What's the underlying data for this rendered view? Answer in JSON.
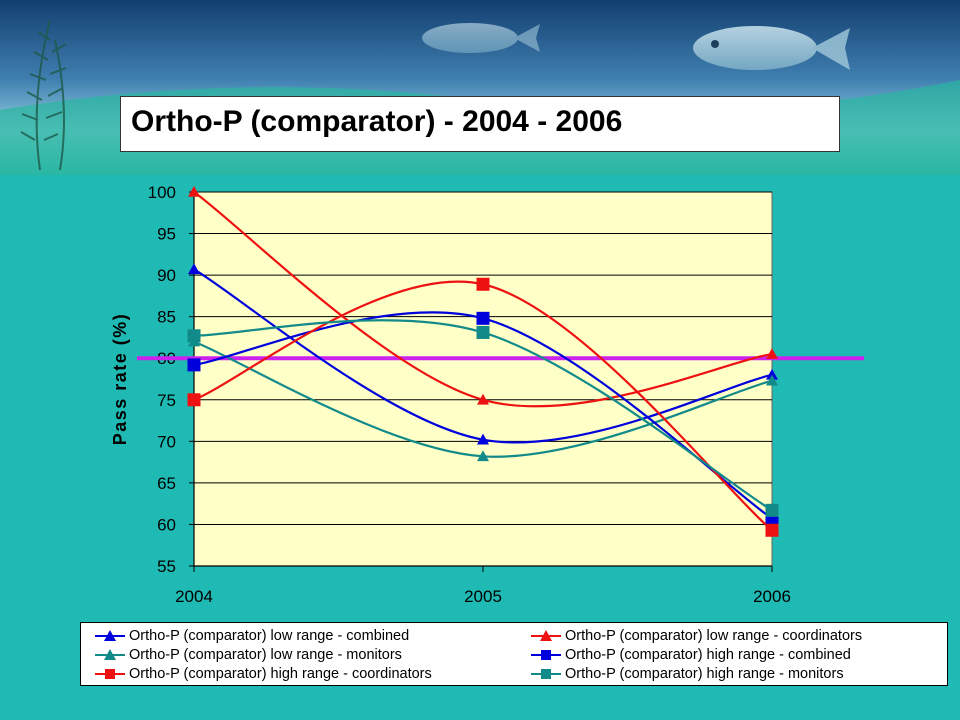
{
  "slide": {
    "title": "Ortho-P (comparator) - 2004 - 2006"
  },
  "colors": {
    "background": "#1fbab3",
    "plot_area": "#ffffc8",
    "reference_line": "#cc22ee"
  },
  "chart_data": {
    "type": "line",
    "smooth": true,
    "title": "",
    "xlabel": "",
    "ylabel": "Pass rate (%)",
    "categories": [
      "2004",
      "2005",
      "2006"
    ],
    "ylim": [
      55,
      100
    ],
    "yticks": [
      55,
      60,
      65,
      70,
      75,
      80,
      85,
      90,
      95,
      100
    ],
    "grid": true,
    "legend_position": "bottom",
    "reference_line": {
      "y": 80,
      "color": "#cc22ee"
    },
    "series": [
      {
        "name": "Ortho-P (comparator) low range - combined",
        "values": [
          90.7,
          70.2,
          78.0
        ],
        "color": "#0000dd",
        "marker": "triangle"
      },
      {
        "name": "Ortho-P (comparator) low range - coordinators",
        "values": [
          100,
          75.0,
          80.5
        ],
        "color": "#ee1111",
        "marker": "triangle"
      },
      {
        "name": "Ortho-P (comparator) low range - monitors",
        "values": [
          82.0,
          68.2,
          77.3
        ],
        "color": "#138a8a",
        "marker": "triangle"
      },
      {
        "name": "Ortho-P (comparator) high range - combined",
        "values": [
          79.2,
          84.8,
          60.7
        ],
        "color": "#0000dd",
        "marker": "square"
      },
      {
        "name": "Ortho-P (comparator) high range - coordinators",
        "values": [
          75.0,
          88.9,
          59.3
        ],
        "color": "#ee1111",
        "marker": "square"
      },
      {
        "name": "Ortho-P (comparator) high range - monitors",
        "values": [
          82.7,
          83.1,
          61.7
        ],
        "color": "#138a8a",
        "marker": "square"
      }
    ]
  }
}
